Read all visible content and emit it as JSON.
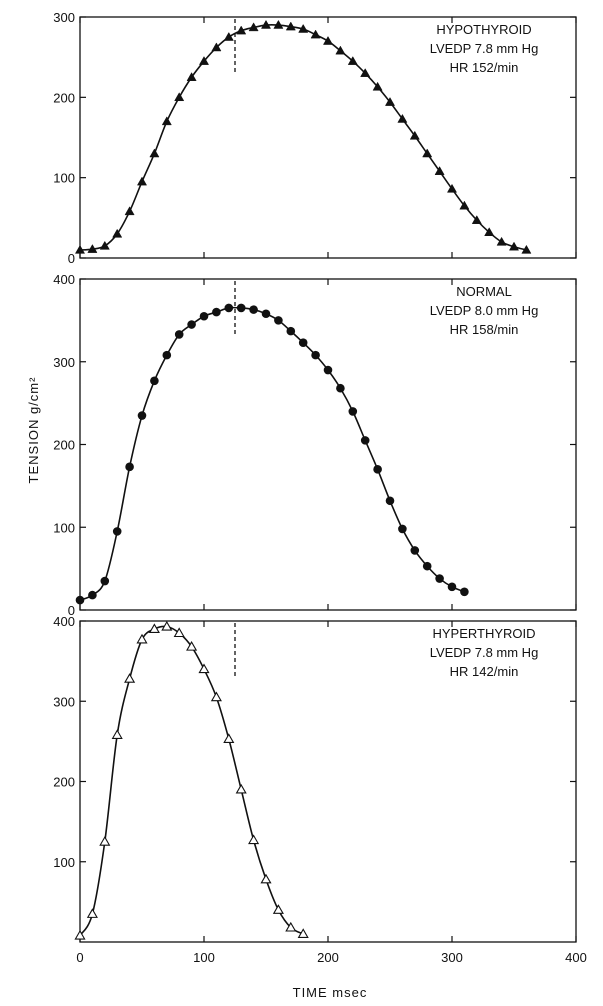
{
  "figure": {
    "ylabel": "TENSION g/cm²",
    "xlabel": "TIME msec",
    "x_ticks": [
      "0",
      "100",
      "200",
      "300",
      "400"
    ]
  },
  "chart_data": [
    {
      "type": "line",
      "xlim": [
        0,
        400
      ],
      "ylim": [
        0,
        300
      ],
      "y_ticks": [
        "0",
        "100",
        "200",
        "300"
      ],
      "annotation": [
        "HYPOTHYROID",
        "LVEDP 7.8 mm Hg",
        "HR 152/min"
      ],
      "marker": "filled-triangle",
      "vline_x": 125,
      "series": [
        {
          "x": [
            0,
            10,
            20,
            30,
            40,
            50,
            60,
            70,
            80,
            90,
            100,
            110,
            120,
            130,
            140,
            150,
            160,
            170,
            180,
            190,
            200,
            210,
            220,
            230,
            240,
            250,
            260,
            270,
            280,
            290,
            300,
            310,
            320,
            330,
            340,
            350,
            360
          ],
          "y": [
            10,
            11,
            15,
            30,
            58,
            95,
            130,
            170,
            200,
            225,
            245,
            262,
            275,
            283,
            287,
            290,
            290,
            288,
            285,
            278,
            270,
            258,
            245,
            230,
            213,
            194,
            173,
            152,
            130,
            108,
            86,
            65,
            47,
            32,
            20,
            14,
            10
          ]
        }
      ]
    },
    {
      "type": "line",
      "xlim": [
        0,
        400
      ],
      "ylim": [
        0,
        400
      ],
      "y_ticks": [
        "0",
        "100",
        "200",
        "300",
        "400"
      ],
      "annotation": [
        "NORMAL",
        "LVEDP 8.0 mm Hg",
        "HR 158/min"
      ],
      "marker": "filled-circle",
      "vline_x": 125,
      "series": [
        {
          "x": [
            0,
            10,
            20,
            30,
            40,
            50,
            60,
            70,
            80,
            90,
            100,
            110,
            120,
            130,
            140,
            150,
            160,
            170,
            180,
            190,
            200,
            210,
            220,
            230,
            240,
            250,
            260,
            270,
            280,
            290,
            300,
            310
          ],
          "y": [
            12,
            18,
            35,
            95,
            173,
            235,
            277,
            308,
            333,
            345,
            355,
            360,
            365,
            365,
            363,
            358,
            350,
            337,
            323,
            308,
            290,
            268,
            240,
            205,
            170,
            132,
            98,
            72,
            53,
            38,
            28,
            22
          ]
        }
      ]
    },
    {
      "type": "line",
      "xlim": [
        0,
        400
      ],
      "ylim": [
        0,
        400
      ],
      "y_ticks": [
        "100",
        "200",
        "300",
        "400"
      ],
      "annotation": [
        "HYPERTHYROID",
        "LVEDP 7.8 mm Hg",
        "HR 142/min"
      ],
      "marker": "open-triangle",
      "vline_x": 125,
      "series": [
        {
          "x": [
            0,
            10,
            20,
            30,
            40,
            50,
            60,
            70,
            80,
            90,
            100,
            110,
            120,
            130,
            140,
            150,
            160,
            170,
            180
          ],
          "y": [
            8,
            35,
            125,
            258,
            328,
            377,
            390,
            393,
            385,
            368,
            340,
            305,
            253,
            190,
            127,
            78,
            40,
            18,
            10
          ]
        }
      ]
    }
  ]
}
